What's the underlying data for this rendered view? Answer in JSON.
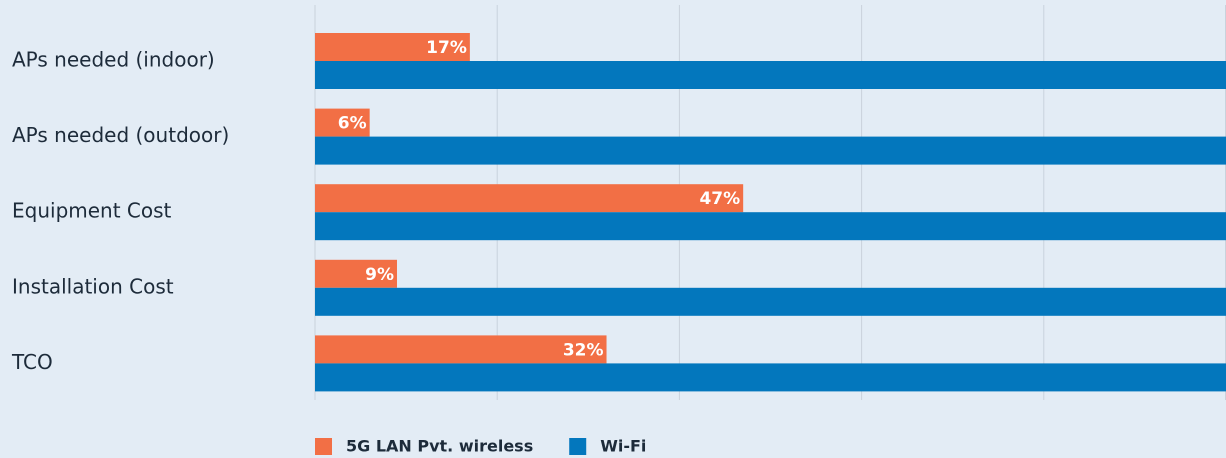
{
  "chart_data": {
    "type": "hbar",
    "categories": [
      "APs needed (indoor)",
      "APs needed (outdoor)",
      "Equipment Cost",
      "Installation Cost",
      "TCO"
    ],
    "series": [
      {
        "name": "5G LAN Pvt. wireless",
        "color": "#f26f45",
        "values": [
          17,
          6,
          47,
          9,
          32
        ],
        "value_labels": [
          "17%",
          "6%",
          "47%",
          "9%",
          "32%"
        ]
      },
      {
        "name": "Wi-Fi",
        "color": "#0377bd",
        "values": [
          100,
          100,
          100,
          100,
          100
        ]
      }
    ],
    "xlim": [
      0,
      100
    ],
    "xticks": [
      0,
      20,
      40,
      60,
      80,
      100
    ],
    "grid": true
  }
}
